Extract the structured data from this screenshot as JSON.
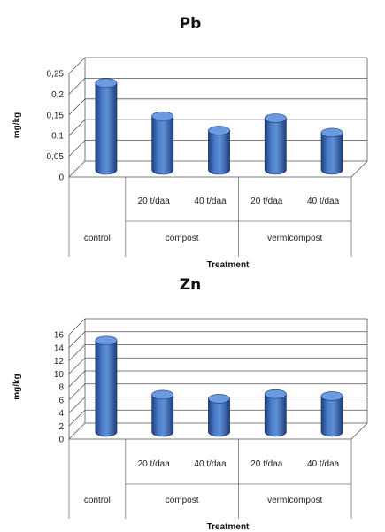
{
  "chart_data": [
    {
      "type": "bar",
      "title": "Pb",
      "xlabel": "Treatment",
      "ylabel": "mg/kg",
      "ylim": [
        0,
        0.25
      ],
      "yticks": [
        "0",
        "0,05",
        "0,1",
        "0,15",
        "0,2",
        "0,25"
      ],
      "groups": [
        {
          "label": "control",
          "subcategories": [
            ""
          ]
        },
        {
          "label": "compost",
          "subcategories": [
            "20 t/daa",
            "40 t/daa"
          ]
        },
        {
          "label": "vermicompost",
          "subcategories": [
            "20 t/daa",
            "40 t/daa"
          ]
        }
      ],
      "categories": [
        "control",
        "compost 20 t/daa",
        "compost 40 t/daa",
        "vermicompost 20 t/daa",
        "vermicompost 40 t/daa"
      ],
      "values": [
        0.21,
        0.13,
        0.095,
        0.125,
        0.09
      ],
      "color": "#3E6DB5",
      "grid": true
    },
    {
      "type": "bar",
      "title": "Zn",
      "xlabel": "Treatment",
      "ylabel": "mg/kg",
      "ylim": [
        0,
        16
      ],
      "yticks": [
        "0",
        "2",
        "4",
        "6",
        "8",
        "10",
        "12",
        "14",
        "16"
      ],
      "groups": [
        {
          "label": "control",
          "subcategories": [
            ""
          ]
        },
        {
          "label": "compost",
          "subcategories": [
            "20 t/daa",
            "40 t/daa"
          ]
        },
        {
          "label": "vermicompost",
          "subcategories": [
            "20 t/daa",
            "40 t/daa"
          ]
        }
      ],
      "categories": [
        "control",
        "compost 20 t/daa",
        "compost 40 t/daa",
        "vermicompost 20 t/daa",
        "vermicompost 40 t/daa"
      ],
      "values": [
        14,
        5.7,
        5.1,
        5.8,
        5.5
      ],
      "color": "#3E6DB5",
      "grid": true
    }
  ]
}
